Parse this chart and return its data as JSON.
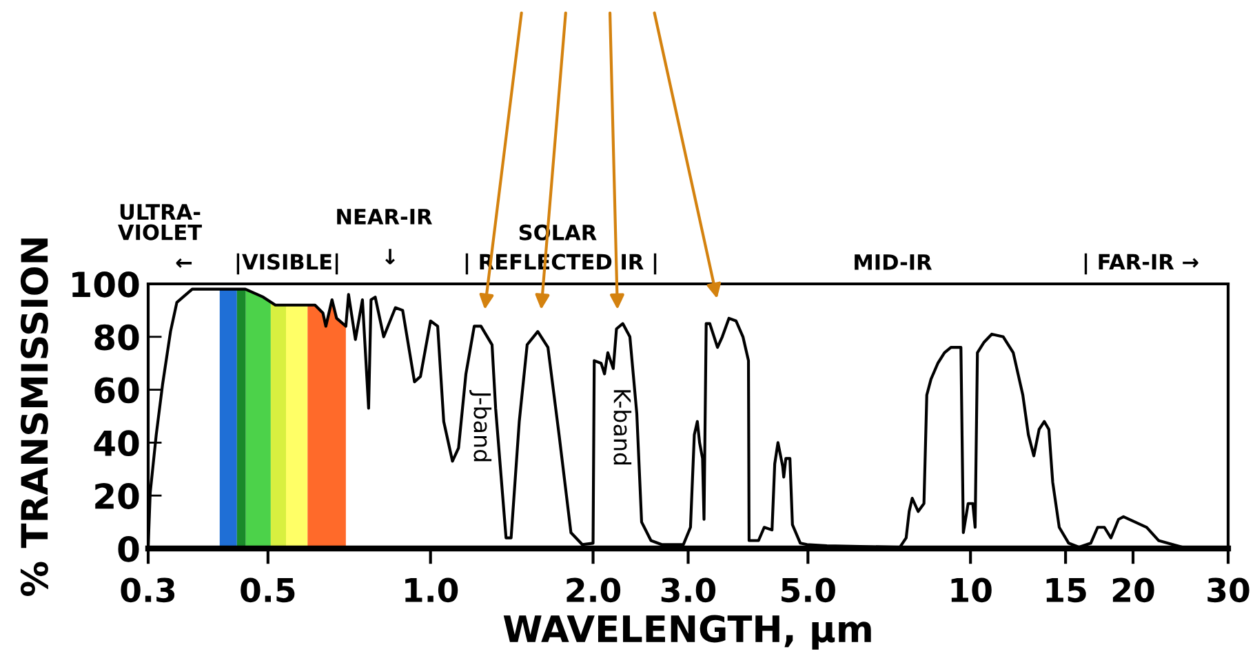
{
  "chart_data": {
    "type": "line",
    "xlabel": "WAVELENGTH, µm",
    "ylabel": "% TRANSMISSION",
    "log": "x",
    "xlim": [
      0.3,
      30
    ],
    "ylim": [
      0,
      100
    ],
    "xticks": [
      0.3,
      0.5,
      {
        "value": 1.0,
        "label": "1.0"
      },
      {
        "value": 2.0,
        "label": "2.0"
      },
      {
        "value": 3.0,
        "label": "3.0"
      },
      {
        "value": 5.0,
        "label": "5.0"
      },
      10,
      15,
      20,
      30
    ],
    "yticks": [
      0,
      20,
      40,
      60,
      80,
      100
    ],
    "grid": false,
    "marker": "none",
    "line_style": "solid",
    "series": [
      {
        "color": "#000000",
        "x": [
          0.3,
          0.3026,
          0.3105,
          0.319,
          0.33,
          0.339,
          0.362,
          0.454,
          0.49,
          0.516,
          0.611,
          0.632,
          0.64,
          0.657,
          0.67,
          0.697,
          0.705,
          0.726,
          0.748,
          0.768,
          0.776,
          0.79,
          0.819,
          0.861,
          0.888,
          0.934,
          0.958,
          1.0,
          1.031,
          1.058,
          1.098,
          1.127,
          1.163,
          1.205,
          1.24,
          1.3,
          1.32,
          1.38,
          1.41,
          1.46,
          1.51,
          1.58,
          1.65,
          1.73,
          1.82,
          1.91,
          2.0,
          2.01,
          2.07,
          2.1,
          2.13,
          2.18,
          2.21,
          2.27,
          2.34,
          2.41,
          2.46,
          2.56,
          2.68,
          2.94,
          3.03,
          3.08,
          3.12,
          3.15,
          3.19,
          3.21,
          3.24,
          3.29,
          3.4,
          3.47,
          3.57,
          3.68,
          3.79,
          3.88,
          3.89,
          4.05,
          4.15,
          4.29,
          4.34,
          4.4,
          4.49,
          4.51,
          4.55,
          4.63,
          4.68,
          4.84,
          4.98,
          5.42,
          7.4,
          7.6,
          7.7,
          7.8,
          8.0,
          8.2,
          8.3,
          8.45,
          8.7,
          8.95,
          9.2,
          9.6,
          9.7,
          9.9,
          10.1,
          10.2,
          10.3,
          10.6,
          10.95,
          11.5,
          12.0,
          12.5,
          12.8,
          13.1,
          13.4,
          13.7,
          13.97,
          14.2,
          14.6,
          15.2,
          15.9,
          16.7,
          17.2,
          17.7,
          18.2,
          18.8,
          19.2,
          21.2,
          22.3,
          24.2,
          25.2
        ],
        "values": [
          0.5,
          21,
          43,
          62,
          82,
          93,
          98,
          98,
          95,
          92,
          92,
          89,
          84,
          94,
          87,
          84,
          96,
          79,
          94,
          53,
          94,
          95,
          80,
          91,
          90,
          63,
          65,
          86,
          84,
          48,
          33,
          38,
          66,
          84,
          84,
          77,
          53,
          4,
          4,
          48,
          77,
          82,
          76,
          43,
          6,
          1.5,
          2,
          71,
          70,
          66,
          74,
          68,
          83,
          85,
          80,
          51,
          10,
          3,
          1.5,
          1.5,
          8,
          43,
          48,
          40,
          34,
          11,
          85,
          85,
          76,
          80,
          87,
          86,
          80,
          71,
          3,
          3,
          8,
          7,
          32,
          40,
          31,
          27,
          34,
          34,
          9,
          2,
          1.5,
          1,
          0.5,
          4,
          14,
          19,
          14,
          17,
          58,
          64,
          70,
          74,
          76,
          76,
          6,
          17,
          17,
          8,
          74,
          78,
          81,
          80,
          74,
          58,
          43,
          35,
          45,
          48,
          45,
          25,
          8,
          2,
          0.5,
          2,
          8,
          8,
          4,
          11,
          12,
          8,
          3,
          1,
          0
        ]
      }
    ],
    "bands": [
      {
        "axis": "x",
        "from": 0.407,
        "to": 0.438,
        "color": "#1f6fd6"
      },
      {
        "axis": "x",
        "from": 0.438,
        "to": 0.455,
        "color": "#1a8a2a"
      },
      {
        "axis": "x",
        "from": 0.455,
        "to": 0.506,
        "color": "#4cd24a"
      },
      {
        "axis": "x",
        "from": 0.506,
        "to": 0.54,
        "color": "#d8f040"
      },
      {
        "axis": "x",
        "from": 0.54,
        "to": 0.592,
        "color": "#ffff66"
      },
      {
        "axis": "x",
        "from": 0.592,
        "to": 0.697,
        "color": "#ff6a2a"
      }
    ],
    "annotations": [
      "ULTRA-\nVIOLET",
      "←",
      "|VISIBLE|",
      "NEAR-IR",
      "↓",
      "SOLAR",
      "| REFLECTED IR |",
      "MID-IR",
      "| FAR-IR →",
      "J-band",
      "K-band"
    ]
  }
}
